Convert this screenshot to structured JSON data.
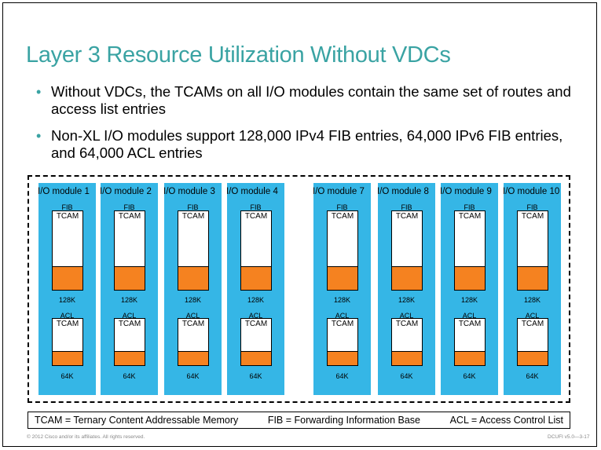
{
  "title": "Layer 3 Resource  Utilization  Without  VDCs",
  "bullets": [
    "Without VDCs, the TCAMs on all I/O modules contain the same set of routes and access list entries",
    "Non-XL I/O modules support 128,000 IPv4 FIB entries, 64,000 IPv6 FIB entries, and 64,000 ACL entries"
  ],
  "modules": [
    {
      "name": "I/O module 1"
    },
    {
      "name": "I/O module  2"
    },
    {
      "name": "I/O module 3"
    },
    {
      "name": "I/O module 4"
    },
    {
      "name": "I/O module 7"
    },
    {
      "name": "I/O module 8"
    },
    {
      "name": "I/O module 9"
    },
    {
      "name": "I/O module 10"
    }
  ],
  "fib_label": "FIB",
  "acl_label": "ACL",
  "tcam_label": "TCAM",
  "fib_capacity": "128K",
  "acl_capacity": "64K",
  "legend": {
    "tcam": "TCAM = Ternary Content Addressable Memory",
    "fib": "FIB = Forwarding Information Base",
    "acl": "ACL = Access Control List"
  },
  "footer": {
    "left": "© 2012 Cisco and/or its affiliates. All rights reserved.",
    "right": "DCUFI v5.0—3-17"
  },
  "colors": {
    "module_bg": "#35b6e6",
    "fill": "#f58220",
    "title": "#3aa3a3"
  }
}
